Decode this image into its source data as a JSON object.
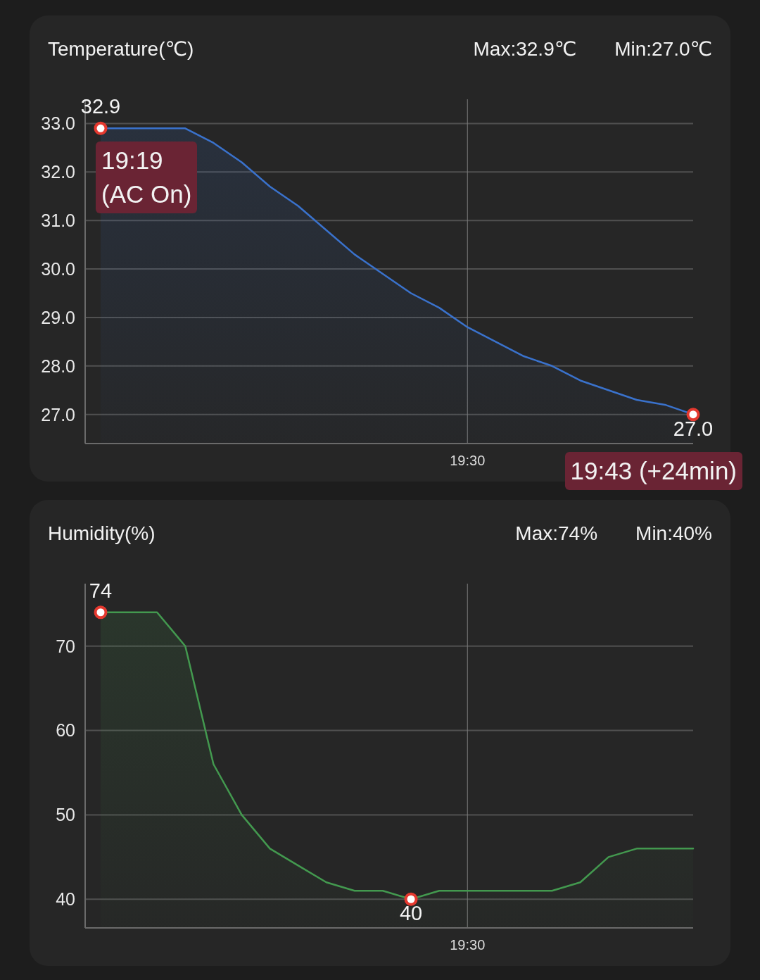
{
  "chart_data": [
    {
      "type": "area",
      "title": "Temperature(℃)",
      "categories": [
        null,
        null,
        null,
        null,
        null,
        null,
        null,
        null,
        null,
        null,
        null,
        null,
        null,
        "19:30",
        null,
        null,
        null,
        null,
        null,
        null,
        null,
        null
      ],
      "series": [
        {
          "color": "#3a72cc",
          "values": [
            32.9,
            32.9,
            32.9,
            32.9,
            32.6,
            32.2,
            31.7,
            31.3,
            30.8,
            30.3,
            29.9,
            29.5,
            29.2,
            28.8,
            28.5,
            28.2,
            28.0,
            27.7,
            27.5,
            27.3,
            27.2,
            27.0
          ]
        },
        {
          "type": "scatter",
          "color": "#e5392f",
          "marker": "circle",
          "values": [
            32.9,
            null,
            null,
            null,
            null,
            null,
            null,
            null,
            null,
            null,
            null,
            null,
            null,
            null,
            null,
            null,
            null,
            null,
            null,
            null,
            null,
            27.0
          ],
          "value_labels": [
            "32.9",
            null,
            null,
            null,
            null,
            null,
            null,
            null,
            null,
            null,
            null,
            null,
            null,
            null,
            null,
            null,
            null,
            null,
            null,
            null,
            null,
            "27.0"
          ]
        }
      ],
      "ylim": [
        26.4,
        33.5
      ],
      "yticks": [
        {
          "value": 27,
          "label": "27.0"
        },
        {
          "value": 28,
          "label": "28.0"
        },
        {
          "value": 29,
          "label": "29.0"
        },
        {
          "value": 30,
          "label": "30.0"
        },
        {
          "value": 31,
          "label": "31.0"
        },
        {
          "value": 32,
          "label": "32.0"
        },
        {
          "value": 33,
          "label": "33.0"
        }
      ],
      "grid": true,
      "marker": "none",
      "annotations": [
        "Max:32.9℃",
        "Min:27.0℃",
        "19:19\n(AC On)",
        "19:43 (+24min)"
      ]
    },
    {
      "type": "area",
      "title": "Humidity(%)",
      "categories": [
        null,
        null,
        null,
        null,
        null,
        null,
        null,
        null,
        null,
        null,
        null,
        null,
        null,
        "19:30",
        null,
        null,
        null,
        null,
        null,
        null,
        null,
        null
      ],
      "series": [
        {
          "color": "#43994f",
          "values": [
            74,
            74,
            74,
            70,
            56,
            50,
            46,
            44,
            42,
            41,
            41,
            40,
            41,
            41,
            41,
            41,
            41,
            42,
            45,
            46,
            46,
            46
          ]
        },
        {
          "type": "scatter",
          "color": "#e5392f",
          "marker": "circle",
          "values": [
            74,
            null,
            null,
            null,
            null,
            null,
            null,
            null,
            null,
            null,
            null,
            40,
            null,
            null,
            null,
            null,
            null,
            null,
            null,
            null,
            null,
            null
          ],
          "value_labels": [
            "74",
            null,
            null,
            null,
            null,
            null,
            null,
            null,
            null,
            null,
            null,
            "40",
            null,
            null,
            null,
            null,
            null,
            null,
            null,
            null,
            null,
            null
          ]
        }
      ],
      "ylim": [
        36.6,
        77.4
      ],
      "yticks": [
        40,
        50,
        60,
        70
      ],
      "grid": true,
      "marker": "none",
      "annotations": [
        "Max:74%",
        "Min:40%"
      ]
    }
  ]
}
